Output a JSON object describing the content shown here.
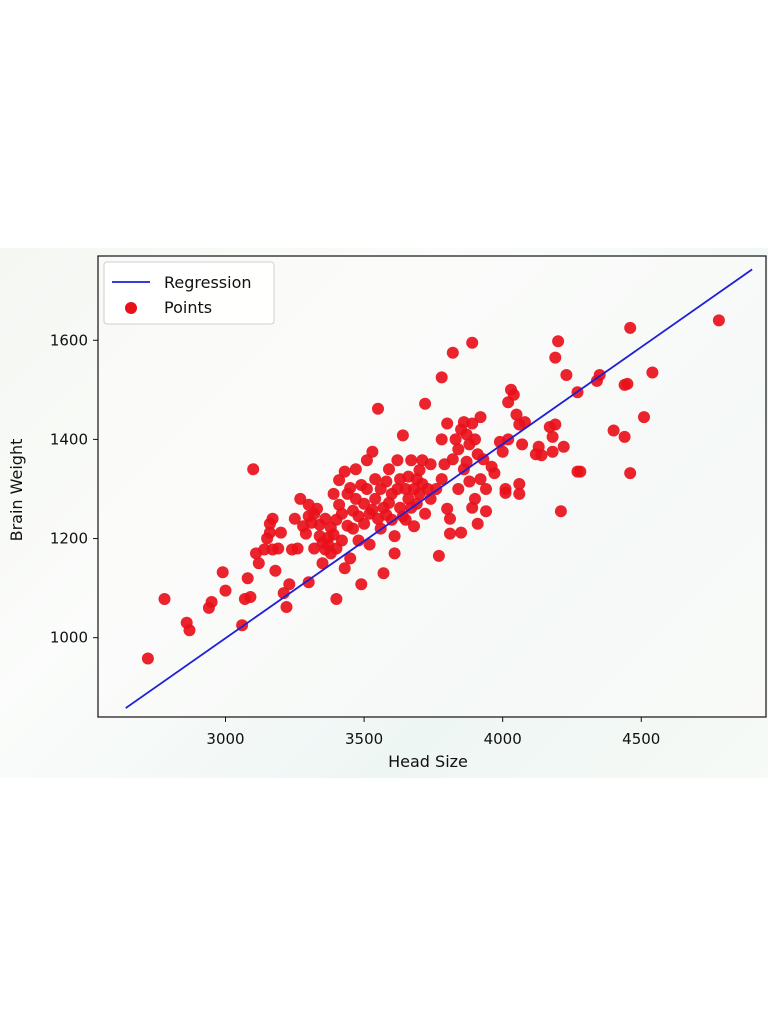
{
  "chart_data": {
    "type": "scatter",
    "title": "",
    "xlabel": "Head Size",
    "ylabel": "Brain Weight",
    "xlim": [
      2540,
      4950
    ],
    "ylim": [
      840,
      1770
    ],
    "xticks": [
      3000,
      3500,
      4000,
      4500
    ],
    "yticks": [
      1000,
      1200,
      1400,
      1600
    ],
    "grid": false,
    "legend_placement": "top-left",
    "series": [
      {
        "name": "Regression",
        "kind": "line",
        "color": "#1f1fd6",
        "x": [
          2640,
          4900
        ],
        "y": [
          858,
          1743
        ]
      },
      {
        "name": "Points",
        "kind": "scatter",
        "color": "#e8101a",
        "points": [
          [
            2720,
            958
          ],
          [
            2780,
            1078
          ],
          [
            2860,
            1030
          ],
          [
            2870,
            1015
          ],
          [
            2940,
            1060
          ],
          [
            2950,
            1072
          ],
          [
            2990,
            1132
          ],
          [
            3000,
            1095
          ],
          [
            3060,
            1025
          ],
          [
            3070,
            1078
          ],
          [
            3080,
            1120
          ],
          [
            3090,
            1082
          ],
          [
            3100,
            1340
          ],
          [
            3110,
            1170
          ],
          [
            3120,
            1150
          ],
          [
            3140,
            1178
          ],
          [
            3150,
            1200
          ],
          [
            3160,
            1212
          ],
          [
            3160,
            1230
          ],
          [
            3170,
            1178
          ],
          [
            3170,
            1240
          ],
          [
            3180,
            1135
          ],
          [
            3190,
            1180
          ],
          [
            3200,
            1212
          ],
          [
            3210,
            1090
          ],
          [
            3220,
            1062
          ],
          [
            3230,
            1108
          ],
          [
            3240,
            1178
          ],
          [
            3250,
            1240
          ],
          [
            3260,
            1180
          ],
          [
            3270,
            1280
          ],
          [
            3280,
            1225
          ],
          [
            3290,
            1210
          ],
          [
            3300,
            1245
          ],
          [
            3300,
            1268
          ],
          [
            3300,
            1112
          ],
          [
            3310,
            1232
          ],
          [
            3320,
            1250
          ],
          [
            3320,
            1180
          ],
          [
            3330,
            1260
          ],
          [
            3340,
            1205
          ],
          [
            3340,
            1228
          ],
          [
            3350,
            1150
          ],
          [
            3350,
            1192
          ],
          [
            3360,
            1178
          ],
          [
            3360,
            1240
          ],
          [
            3370,
            1202
          ],
          [
            3370,
            1188
          ],
          [
            3380,
            1222
          ],
          [
            3380,
            1170
          ],
          [
            3390,
            1208
          ],
          [
            3390,
            1290
          ],
          [
            3400,
            1238
          ],
          [
            3400,
            1180
          ],
          [
            3400,
            1078
          ],
          [
            3410,
            1268
          ],
          [
            3410,
            1318
          ],
          [
            3420,
            1250
          ],
          [
            3420,
            1196
          ],
          [
            3430,
            1140
          ],
          [
            3430,
            1335
          ],
          [
            3440,
            1226
          ],
          [
            3440,
            1290
          ],
          [
            3450,
            1302
          ],
          [
            3450,
            1160
          ],
          [
            3460,
            1256
          ],
          [
            3460,
            1220
          ],
          [
            3470,
            1280
          ],
          [
            3470,
            1340
          ],
          [
            3480,
            1245
          ],
          [
            3480,
            1196
          ],
          [
            3490,
            1108
          ],
          [
            3490,
            1308
          ],
          [
            3500,
            1230
          ],
          [
            3500,
            1270
          ],
          [
            3510,
            1358
          ],
          [
            3510,
            1300
          ],
          [
            3520,
            1250
          ],
          [
            3520,
            1188
          ],
          [
            3530,
            1258
          ],
          [
            3530,
            1375
          ],
          [
            3540,
            1280
          ],
          [
            3540,
            1320
          ],
          [
            3550,
            1240
          ],
          [
            3550,
            1462
          ],
          [
            3560,
            1220
          ],
          [
            3560,
            1300
          ],
          [
            3570,
            1130
          ],
          [
            3570,
            1262
          ],
          [
            3580,
            1315
          ],
          [
            3580,
            1248
          ],
          [
            3590,
            1272
          ],
          [
            3590,
            1340
          ],
          [
            3600,
            1290
          ],
          [
            3600,
            1238
          ],
          [
            3610,
            1205
          ],
          [
            3610,
            1170
          ],
          [
            3620,
            1300
          ],
          [
            3620,
            1358
          ],
          [
            3630,
            1262
          ],
          [
            3630,
            1320
          ],
          [
            3640,
            1245
          ],
          [
            3640,
            1408
          ],
          [
            3650,
            1300
          ],
          [
            3650,
            1238
          ],
          [
            3660,
            1325
          ],
          [
            3660,
            1280
          ],
          [
            3670,
            1358
          ],
          [
            3670,
            1262
          ],
          [
            3680,
            1300
          ],
          [
            3680,
            1225
          ],
          [
            3690,
            1320
          ],
          [
            3690,
            1270
          ],
          [
            3700,
            1338
          ],
          [
            3700,
            1290
          ],
          [
            3710,
            1358
          ],
          [
            3710,
            1310
          ],
          [
            3720,
            1472
          ],
          [
            3720,
            1250
          ],
          [
            3730,
            1300
          ],
          [
            3740,
            1350
          ],
          [
            3740,
            1280
          ],
          [
            3760,
            1300
          ],
          [
            3770,
            1165
          ],
          [
            3780,
            1525
          ],
          [
            3780,
            1400
          ],
          [
            3780,
            1320
          ],
          [
            3790,
            1350
          ],
          [
            3800,
            1432
          ],
          [
            3800,
            1260
          ],
          [
            3810,
            1240
          ],
          [
            3810,
            1210
          ],
          [
            3820,
            1575
          ],
          [
            3820,
            1360
          ],
          [
            3830,
            1400
          ],
          [
            3840,
            1380
          ],
          [
            3840,
            1300
          ],
          [
            3850,
            1420
          ],
          [
            3850,
            1212
          ],
          [
            3860,
            1435
          ],
          [
            3860,
            1340
          ],
          [
            3870,
            1410
          ],
          [
            3870,
            1355
          ],
          [
            3880,
            1390
          ],
          [
            3880,
            1315
          ],
          [
            3890,
            1595
          ],
          [
            3890,
            1432
          ],
          [
            3890,
            1262
          ],
          [
            3900,
            1400
          ],
          [
            3900,
            1280
          ],
          [
            3910,
            1370
          ],
          [
            3910,
            1230
          ],
          [
            3920,
            1445
          ],
          [
            3920,
            1320
          ],
          [
            3930,
            1360
          ],
          [
            3940,
            1300
          ],
          [
            3940,
            1255
          ],
          [
            3960,
            1345
          ],
          [
            3970,
            1332
          ],
          [
            3990,
            1395
          ],
          [
            4000,
            1375
          ],
          [
            4010,
            1300
          ],
          [
            4010,
            1292
          ],
          [
            4020,
            1475
          ],
          [
            4020,
            1400
          ],
          [
            4030,
            1500
          ],
          [
            4040,
            1490
          ],
          [
            4050,
            1450
          ],
          [
            4060,
            1430
          ],
          [
            4060,
            1310
          ],
          [
            4060,
            1290
          ],
          [
            4070,
            1390
          ],
          [
            4080,
            1435
          ],
          [
            4120,
            1370
          ],
          [
            4130,
            1385
          ],
          [
            4140,
            1368
          ],
          [
            4170,
            1425
          ],
          [
            4180,
            1405
          ],
          [
            4180,
            1375
          ],
          [
            4190,
            1565
          ],
          [
            4190,
            1430
          ],
          [
            4200,
            1598
          ],
          [
            4210,
            1255
          ],
          [
            4220,
            1385
          ],
          [
            4230,
            1530
          ],
          [
            4270,
            1495
          ],
          [
            4270,
            1335
          ],
          [
            4280,
            1335
          ],
          [
            4340,
            1518
          ],
          [
            4350,
            1530
          ],
          [
            4400,
            1418
          ],
          [
            4440,
            1510
          ],
          [
            4440,
            1405
          ],
          [
            4450,
            1512
          ],
          [
            4460,
            1625
          ],
          [
            4460,
            1332
          ],
          [
            4510,
            1445
          ],
          [
            4540,
            1535
          ],
          [
            4780,
            1640
          ]
        ]
      }
    ]
  }
}
